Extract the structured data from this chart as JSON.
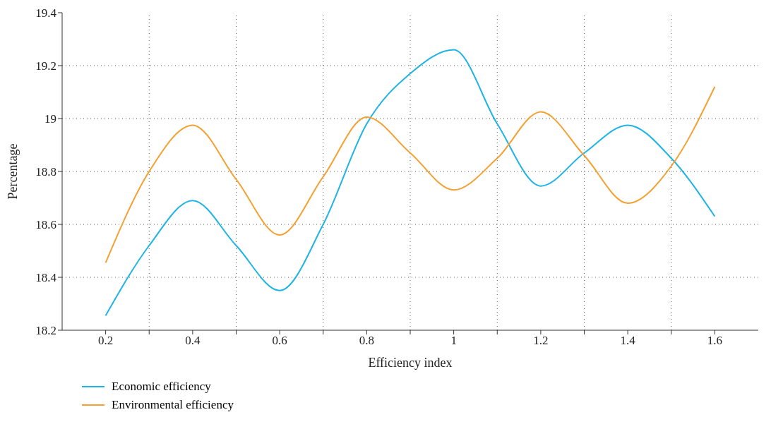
{
  "chart_data": {
    "type": "line",
    "xlabel": "Efficiency index",
    "ylabel": "Percentage",
    "x": [
      0.2,
      0.3,
      0.4,
      0.5,
      0.6,
      0.7,
      0.8,
      0.9,
      1.0,
      1.1,
      1.2,
      1.3,
      1.4,
      1.5,
      1.6
    ],
    "series": [
      {
        "name": "Economic efficiency",
        "color": "#1eb4e6",
        "values": [
          18.255,
          18.52,
          18.69,
          18.52,
          18.35,
          18.6,
          18.98,
          19.17,
          19.26,
          18.98,
          18.745,
          18.87,
          18.975,
          18.85,
          18.63
        ]
      },
      {
        "name": "Environmental efficiency",
        "color": "#f5a031",
        "values": [
          18.455,
          18.8,
          18.975,
          18.77,
          18.56,
          18.78,
          19.005,
          18.87,
          18.73,
          18.85,
          19.025,
          18.86,
          18.68,
          18.82,
          19.12
        ]
      }
    ],
    "xlim": [
      0.1,
      1.7
    ],
    "xticks": [
      0.2,
      {
        "value": 0.3,
        "label": null
      },
      0.4,
      {
        "value": 0.5,
        "label": null
      },
      0.6,
      {
        "value": 0.7,
        "label": null
      },
      0.8,
      {
        "value": 0.9,
        "label": null
      },
      1,
      {
        "value": 1.1,
        "label": null
      },
      1.2,
      {
        "value": 1.3,
        "label": null
      },
      1.4,
      {
        "value": 1.5,
        "label": null
      },
      1.6
    ],
    "ylim": [
      18.2,
      19.4
    ],
    "yticks": [
      18.2,
      18.4,
      18.6,
      18.8,
      19,
      19.2,
      19.4
    ],
    "grid": true,
    "legend": "bottom left",
    "marker": "none",
    "line_style": "solid"
  }
}
